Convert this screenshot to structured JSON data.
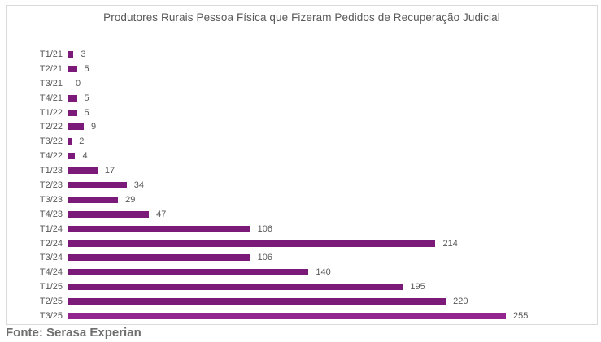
{
  "chart_data": {
    "type": "bar",
    "orientation": "horizontal",
    "title": "Produtores Rurais Pessoa Física que Fizeram Pedidos de Recuperação Judicial",
    "categories": [
      "T1/21",
      "T2/21",
      "T3/21",
      "T4/21",
      "T1/22",
      "T2/22",
      "T3/22",
      "T4/22",
      "T1/23",
      "T2/23",
      "T3/23",
      "T4/23",
      "T1/24",
      "T2/24",
      "T3/24",
      "T4/24",
      "T1/25",
      "T2/25",
      "T3/25"
    ],
    "values": [
      3,
      5,
      0,
      5,
      5,
      9,
      2,
      4,
      17,
      34,
      29,
      47,
      106,
      214,
      106,
      140,
      195,
      220,
      255
    ],
    "xlabel": "",
    "ylabel": "",
    "grid": false,
    "legend": false,
    "data_labels": true,
    "source": "Fonte: Serasa Experian"
  },
  "colors": {
    "bar": "#7B1A78",
    "bar_highlight": "#93268E",
    "label_gray": "#595959",
    "axis_line": "#BFBFBF",
    "frame_border": "#D9D9D9",
    "source_text": "#6E6E6E"
  }
}
